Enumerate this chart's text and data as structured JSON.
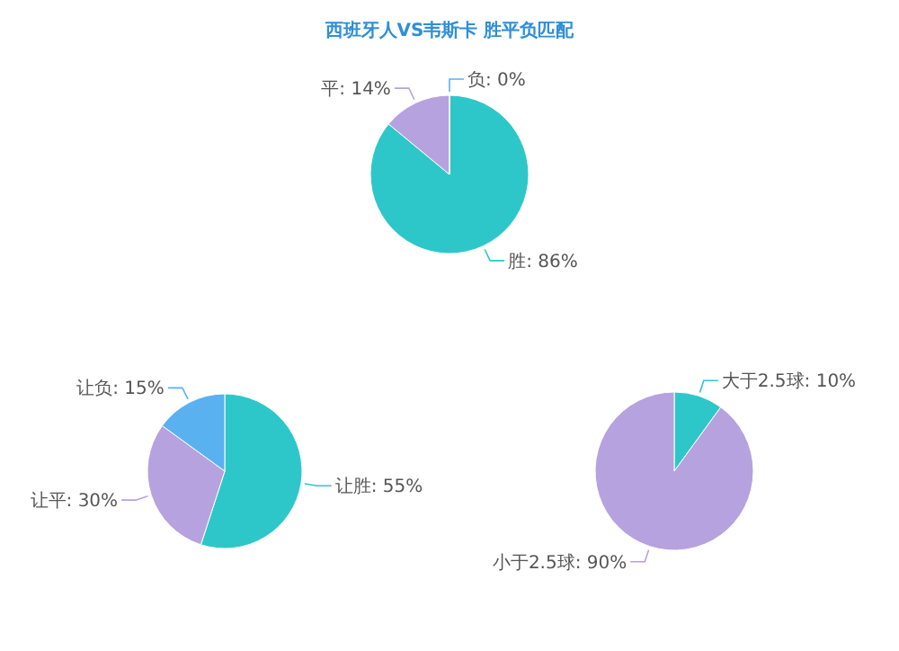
{
  "chart_data": [
    {
      "type": "pie",
      "title": "西班牙人VS韦斯卡 胜平负匹配",
      "categories": [
        "胜",
        "平",
        "负"
      ],
      "values": [
        86,
        14,
        0
      ],
      "value_labels": [
        "86%",
        "14%",
        "0%"
      ],
      "colors": [
        "#2ec7c9",
        "#b6a2de",
        "#5ab1ef"
      ]
    },
    {
      "type": "pie",
      "categories": [
        "让胜",
        "让平",
        "让负"
      ],
      "values": [
        55,
        30,
        15
      ],
      "value_labels": [
        "55%",
        "30%",
        "15%"
      ],
      "colors": [
        "#2ec7c9",
        "#b6a2de",
        "#5ab1ef"
      ]
    },
    {
      "type": "pie",
      "categories": [
        "大于2.5球",
        "小于2.5球"
      ],
      "values": [
        10,
        90
      ],
      "value_labels": [
        "10%",
        "90%"
      ],
      "colors": [
        "#2ec7c9",
        "#b6a2de"
      ]
    }
  ]
}
